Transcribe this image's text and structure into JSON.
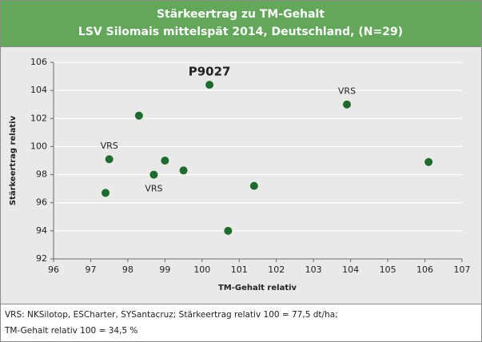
{
  "chart_data": {
    "type": "scatter",
    "title": "Stärkeertrag zu TM-Gehalt",
    "subtitle": "LSV Silomais mittelspät 2014, Deutschland, (N=29)",
    "x_label": "TM-Gehalt relativ",
    "y_label": "Stärkeertrag relativ",
    "x": [
      100.2,
      103.9,
      98.3,
      97.5,
      99.0,
      98.7,
      99.5,
      97.4,
      101.4,
      100.7,
      106.1
    ],
    "values": [
      104.4,
      103.0,
      102.2,
      99.1,
      99.0,
      98.0,
      98.3,
      96.7,
      97.2,
      94.0,
      98.9
    ],
    "color": "#1e6b30",
    "xlim": [
      96,
      107
    ],
    "xticks": [
      96,
      97,
      98,
      99,
      100,
      101,
      102,
      103,
      104,
      105,
      106,
      107
    ],
    "ylim": [
      92,
      106
    ],
    "yticks": [
      92,
      94,
      96,
      98,
      100,
      102,
      104,
      106
    ],
    "grid": true,
    "annotations": [
      {
        "text": "P9027",
        "x": 100.2,
        "y": 104.4
      },
      {
        "text": "VRS",
        "x": 103.9,
        "y": 103.0
      },
      {
        "text": "VRS",
        "x": 97.5,
        "y": 99.1
      },
      {
        "text": "VRS",
        "x": 98.7,
        "y": 98.0
      }
    ],
    "footnotes": [
      "VRS: NKSilotop, ESCharter, SYSantacruz; Stärkeertrag relativ 100 = 77,5 dt/ha;",
      "TM-Gehalt relativ 100 = 34,5 %"
    ]
  }
}
